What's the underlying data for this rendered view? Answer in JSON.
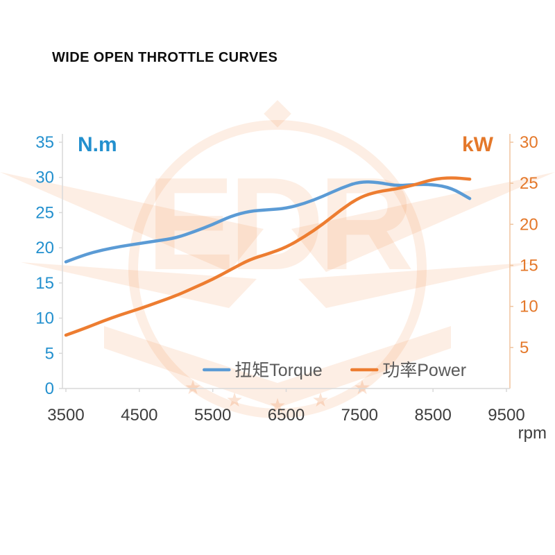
{
  "title": "WIDE OPEN THROTTLE CURVES",
  "watermark": {
    "letters": "EDR"
  },
  "chart_data": {
    "type": "line",
    "x": [
      3500,
      3750,
      4000,
      4250,
      4500,
      4750,
      5000,
      5250,
      5500,
      5750,
      6000,
      6250,
      6500,
      6750,
      7000,
      7250,
      7500,
      7750,
      8000,
      8250,
      8500,
      8750,
      9000
    ],
    "series": [
      {
        "id": "torque-curve",
        "name": "扭矩Torque",
        "axis": "left",
        "color": "#5B9BD5",
        "values": [
          18,
          19,
          19.7,
          20.2,
          20.6,
          21,
          21.4,
          22.3,
          23.3,
          24.5,
          25.2,
          25.4,
          25.6,
          26.3,
          27.3,
          28.5,
          29.4,
          29.3,
          28.8,
          29,
          29,
          28.5,
          27
        ]
      },
      {
        "id": "power-curve",
        "name": "功率Power",
        "axis": "right",
        "color": "#ED7D31",
        "values": [
          6.5,
          7.3,
          8.2,
          9,
          9.7,
          10.5,
          11.3,
          12.3,
          13.3,
          14.5,
          15.7,
          16.4,
          17.2,
          18.5,
          20,
          21.8,
          23.3,
          24,
          24.3,
          24.8,
          25.5,
          25.7,
          25.5
        ]
      }
    ],
    "left_axis": {
      "label": "N.m",
      "ticks": [
        0,
        5,
        10,
        15,
        20,
        25,
        30,
        35
      ],
      "range": [
        0,
        35
      ],
      "color": "#2390CE"
    },
    "right_axis": {
      "label": "kW",
      "ticks": [
        5,
        10,
        15,
        20,
        25,
        30
      ],
      "range": [
        0,
        30
      ],
      "color": "#E4782A"
    },
    "x_axis": {
      "label": "rpm",
      "ticks": [
        3500,
        4500,
        5500,
        6500,
        7500,
        8500,
        9500
      ],
      "range": [
        3500,
        9500
      ],
      "color": "#3d3d3d"
    },
    "legend": [
      {
        "label": "扭矩Torque",
        "color": "#5B9BD5"
      },
      {
        "label": "功率Power",
        "color": "#ED7D31"
      }
    ],
    "legend_text_color": "#595959",
    "grid": false,
    "legend_position": "bottom-center-inside"
  }
}
